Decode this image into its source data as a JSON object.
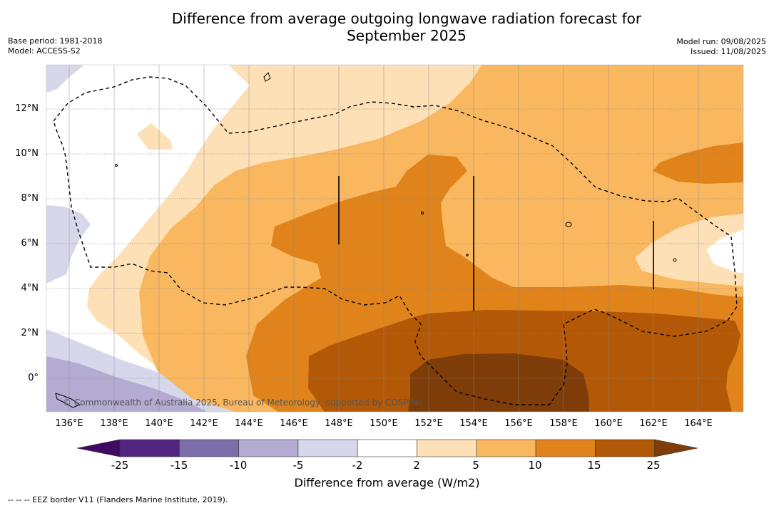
{
  "title": "Difference from average outgoing longwave radiation forecast for\nSeptember 2025",
  "meta_left": {
    "base_period": "Base period: 1981-2018",
    "model": "Model: ACCESS-S2"
  },
  "meta_right": {
    "model_run": "Model run: 09/08/2025",
    "issued": "Issued: 11/08/2025"
  },
  "lat_ticks": [
    "12°N",
    "10°N",
    "8°N",
    "6°N",
    "4°N",
    "2°N",
    "0°"
  ],
  "lon_ticks": [
    "136°E",
    "138°E",
    "140°E",
    "142°E",
    "144°E",
    "146°E",
    "148°E",
    "150°E",
    "152°E",
    "154°E",
    "156°E",
    "158°E",
    "160°E",
    "162°E",
    "164°E"
  ],
  "copyright": "© Commonwealth of Australia 2025, Bureau of Meteorology, supported by COSPPac",
  "colorbar": {
    "ticks": [
      "-25",
      "-15",
      "-10",
      "-5",
      "-2",
      "2",
      "5",
      "10",
      "15",
      "25"
    ],
    "colors": [
      "#3f0a62",
      "#532380",
      "#7d6eab",
      "#b3abd2",
      "#d7d7eb",
      "#ffffff",
      "#fde0b5",
      "#f9b760",
      "#e0831a",
      "#b35806",
      "#7e3c09"
    ],
    "label": "Difference from average (W/m2)"
  },
  "footnote": "-- -- -- EEZ border V11 (Flanders Marine Institute, 2019)."
}
